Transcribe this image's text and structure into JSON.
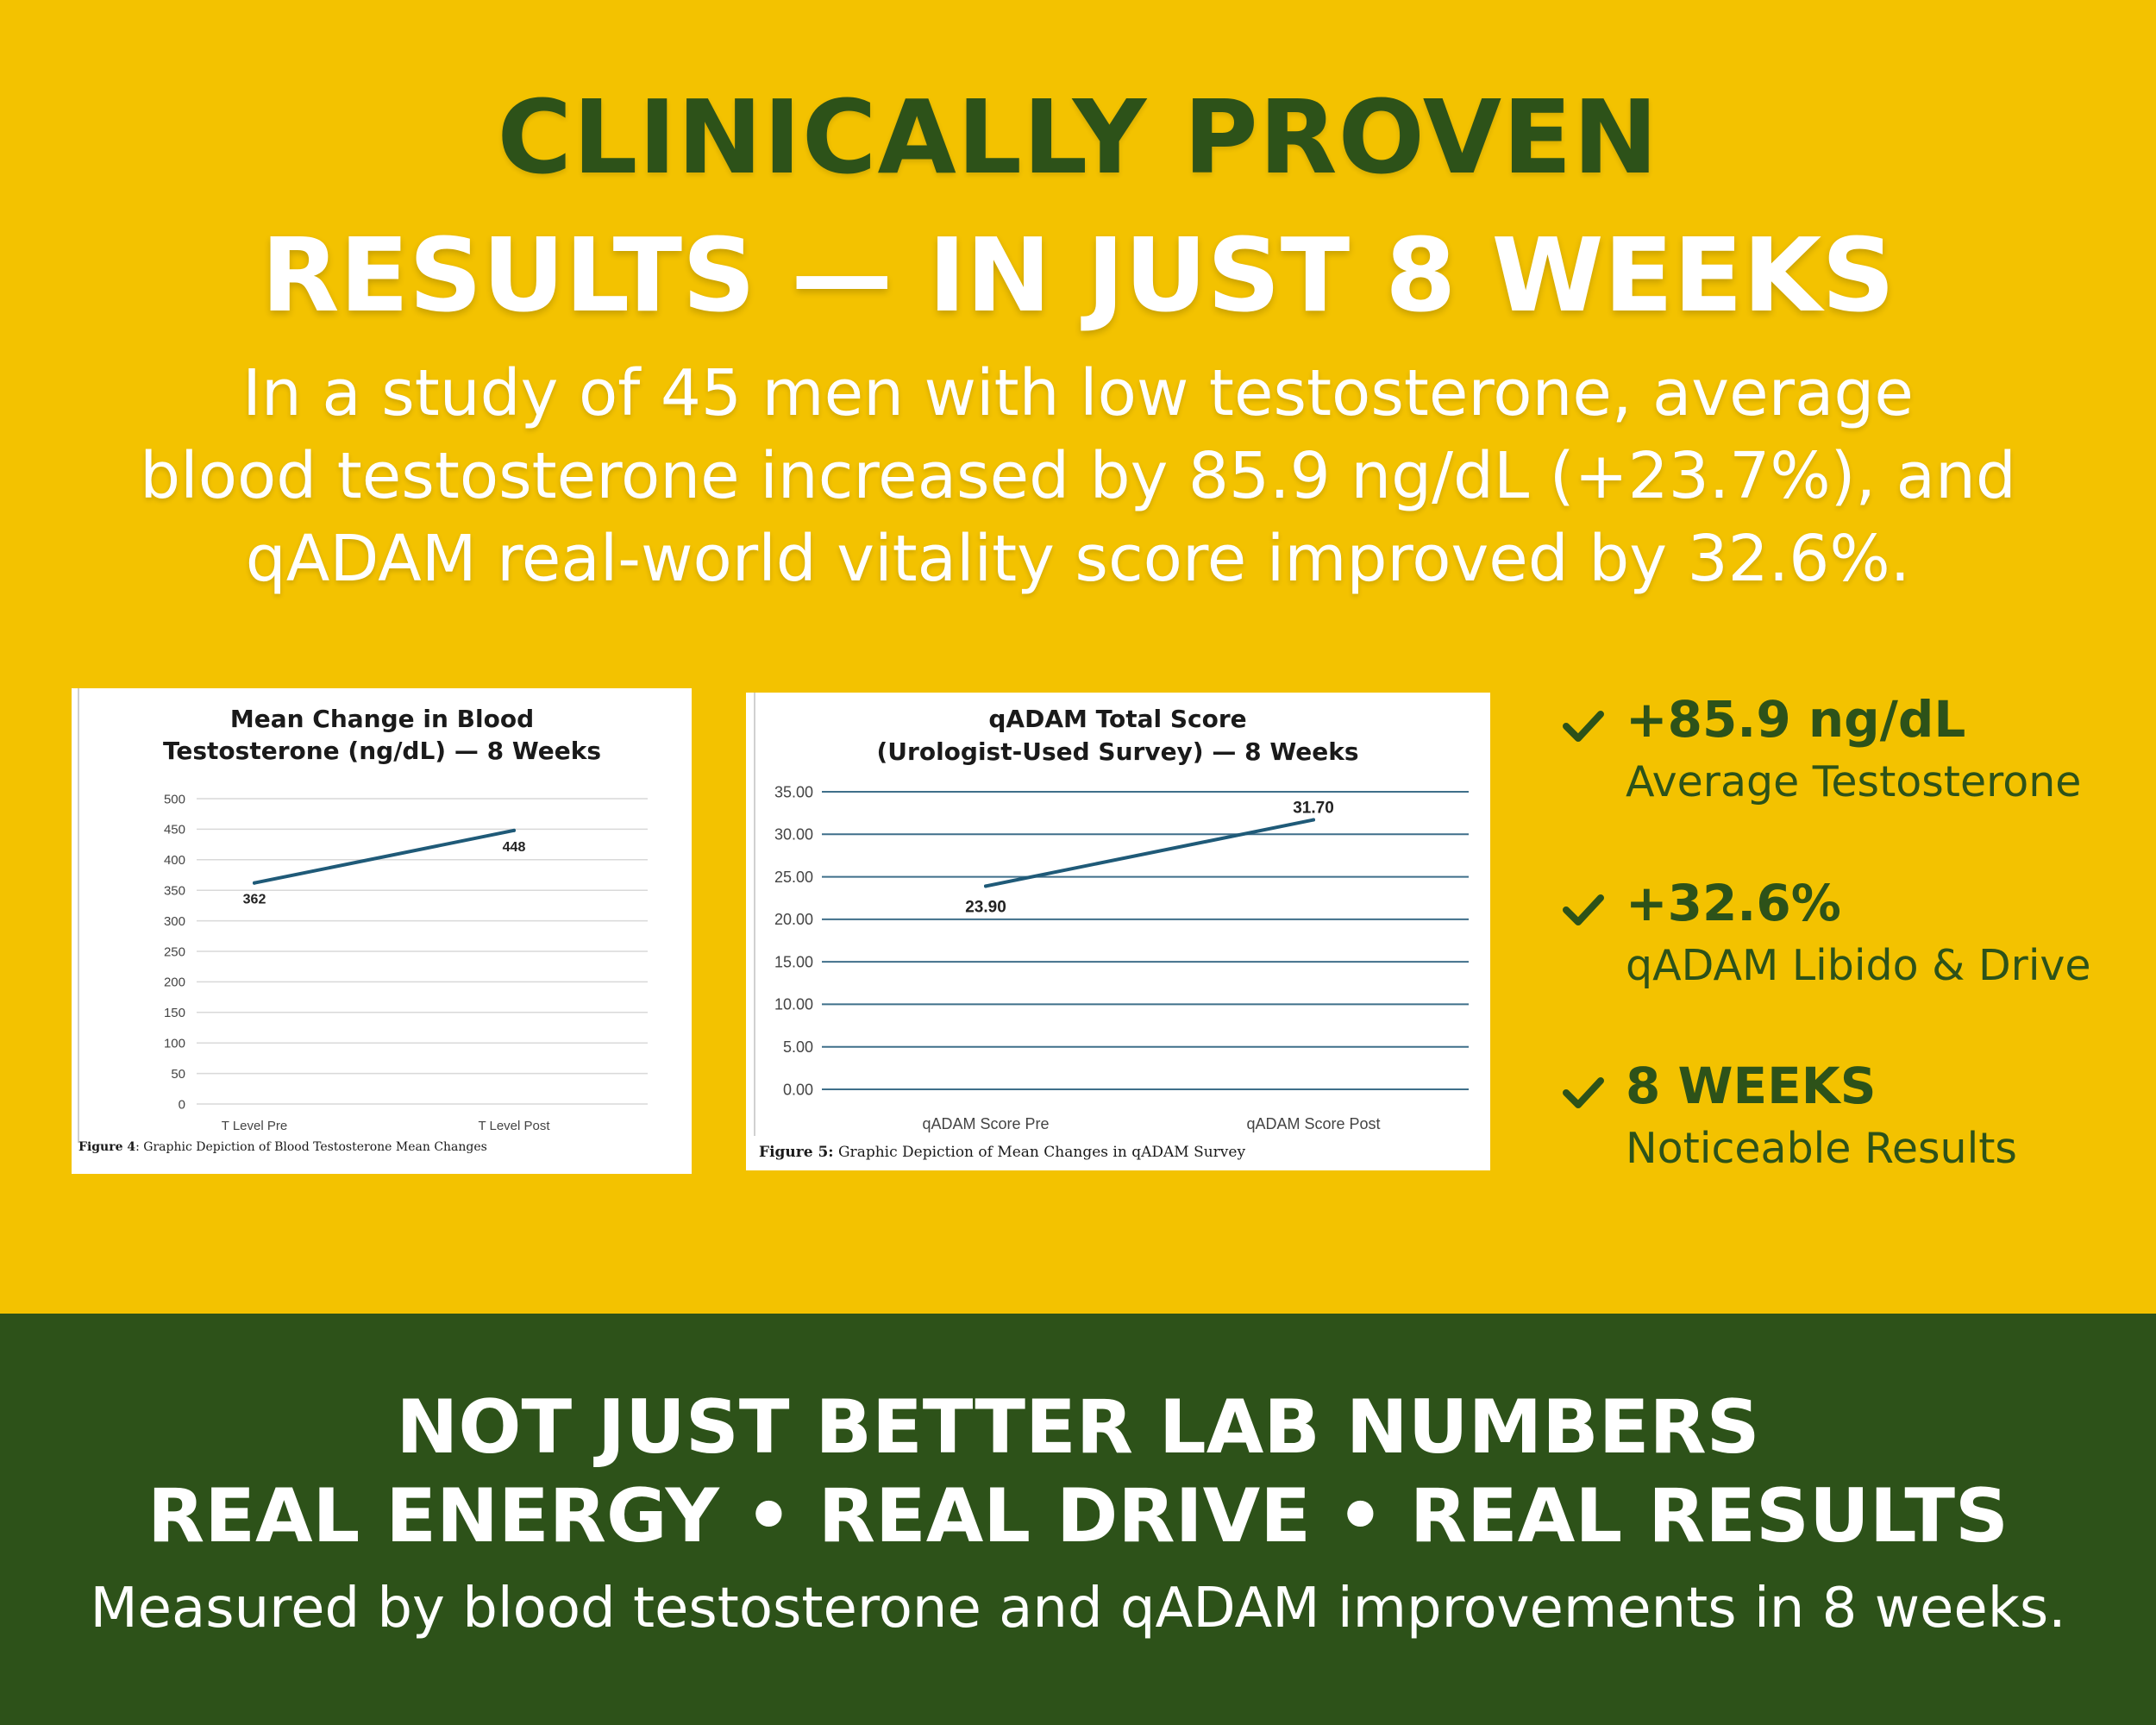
{
  "headline": {
    "line1": "CLINICALLY PROVEN",
    "line2": "RESULTS — IN JUST 8 WEEKS"
  },
  "subtext": {
    "line1": "In a study of 45 men with low testosterone, average",
    "line2": "blood testosterone increased by 85.9 ng/dL (+23.7%), and",
    "line3": "qADAM real-world vitality score improved by 32.6%."
  },
  "chart_data": [
    {
      "type": "line",
      "title": "Mean Change in Blood Testosterone (ng/dL) — 8 Weeks",
      "title_lines": [
        "Mean Change in Blood",
        "Testosterone (ng/dL) — 8 Weeks"
      ],
      "categories": [
        "T Level Pre",
        "T Level Post"
      ],
      "values": [
        362,
        448
      ],
      "data_labels": [
        "362",
        "448"
      ],
      "ylim": [
        0,
        500
      ],
      "yticks": [
        0,
        50,
        100,
        150,
        200,
        250,
        300,
        350,
        400,
        450,
        500
      ],
      "ytick_labels": [
        "0",
        "50",
        "100",
        "150",
        "200",
        "250",
        "300",
        "350",
        "400",
        "450",
        "500"
      ],
      "grid": true,
      "caption_bold": "Figure 4",
      "caption_text": ": Graphic Depiction of Blood Testosterone Mean Changes",
      "line_color": "#1f5a78",
      "grid_color": "#d9d9d9"
    },
    {
      "type": "line",
      "title": "qADAM Total Score (Urologist-Used Survey) — 8 Weeks",
      "title_lines": [
        "qADAM Total Score",
        "(Urologist-Used Survey) — 8 Weeks"
      ],
      "categories": [
        "qADAM Score Pre",
        "qADAM Score Post"
      ],
      "values": [
        23.9,
        31.7
      ],
      "data_labels": [
        "23.90",
        "31.70"
      ],
      "ylim": [
        0,
        35
      ],
      "yticks": [
        0,
        5,
        10,
        15,
        20,
        25,
        30,
        35
      ],
      "ytick_labels": [
        "0.00",
        "5.00",
        "10.00",
        "15.00",
        "20.00",
        "25.00",
        "30.00",
        "35.00"
      ],
      "grid": true,
      "caption_bold": "Figure 5:",
      "caption_text": " Graphic Depiction of Mean Changes in qADAM Survey",
      "line_color": "#1f5a78",
      "grid_color": "#3f6f8a"
    }
  ],
  "stats": [
    {
      "value": "+85.9 ng/dL",
      "label": "Average Testosterone",
      "icon": "check-icon"
    },
    {
      "value": "+32.6%",
      "label": "qADAM Libido & Drive",
      "icon": "check-icon"
    },
    {
      "value": "8 WEEKS",
      "label": "Noticeable Results",
      "icon": "check-icon"
    }
  ],
  "footer": {
    "line1": "NOT JUST BETTER LAB NUMBERS",
    "line2": "REAL ENERGY • REAL DRIVE • REAL RESULTS",
    "line3": "Measured by blood testosterone and qADAM improvements in 8 weeks."
  },
  "colors": {
    "background": "#f3c200",
    "dark_green": "#2d5219",
    "white": "#ffffff"
  }
}
